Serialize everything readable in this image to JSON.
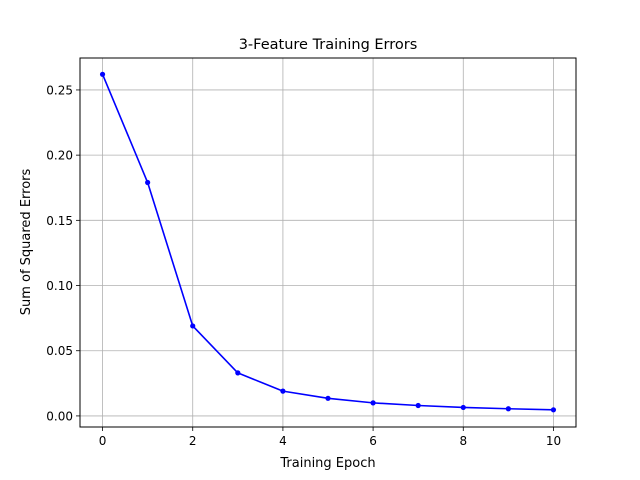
{
  "chart_data": {
    "type": "line",
    "title": "3-Feature Training Errors",
    "xlabel": "Training Epoch",
    "ylabel": "Sum of Squared Errors",
    "xlim": [
      -0.5,
      10.5
    ],
    "ylim": [
      -0.0085,
      0.2745
    ],
    "xticks": [
      0,
      2,
      4,
      6,
      8,
      10
    ],
    "xtick_labels": [
      "0",
      "2",
      "4",
      "6",
      "8",
      "10"
    ],
    "yticks": [
      0.0,
      0.05,
      0.1,
      0.15,
      0.2,
      0.25
    ],
    "ytick_labels": [
      "0.00",
      "0.05",
      "0.10",
      "0.15",
      "0.20",
      "0.25"
    ],
    "grid": true,
    "legend": "none",
    "series": [
      {
        "color": "#0000ff",
        "marker": "dot",
        "x": [
          0,
          1,
          2,
          3,
          4,
          5,
          6,
          7,
          8,
          9,
          10
        ],
        "y": [
          0.262,
          0.179,
          0.069,
          0.033,
          0.019,
          0.0135,
          0.01,
          0.008,
          0.0065,
          0.0055,
          0.0047
        ]
      }
    ]
  }
}
